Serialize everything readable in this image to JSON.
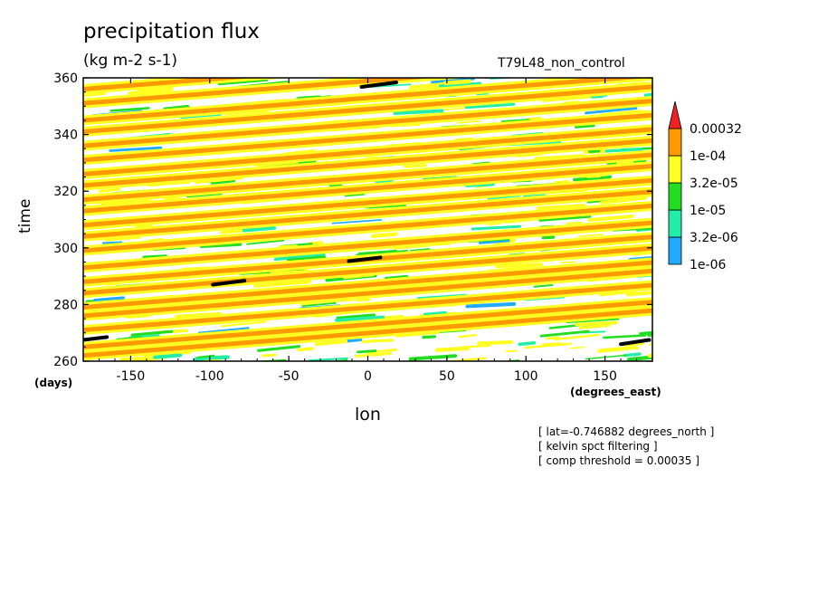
{
  "chart_data": {
    "type": "heatmap",
    "title": "precipitation flux",
    "units": "(kg m-2 s-1)",
    "dataset_label": "T79L48_non_control",
    "xlabel": "lon",
    "x_units": "(degrees_east)",
    "ylabel": "time",
    "y_units": "(days)",
    "xlim": [
      -180,
      180
    ],
    "ylim": [
      260,
      360
    ],
    "x_ticks": [
      -150,
      -100,
      -50,
      0,
      50,
      100,
      150
    ],
    "y_ticks": [
      260,
      280,
      300,
      320,
      340,
      360
    ],
    "colorbar": {
      "levels": [
        "1e-06",
        "3.2e-06",
        "1e-05",
        "3.2e-05",
        "1e-04",
        "0.00032"
      ],
      "colors": [
        "#22aaff",
        "#22eeaa",
        "#22dd22",
        "#ffff22",
        "#ff9900",
        "#ee2222"
      ],
      "extend": "max"
    },
    "bands_note": "eastward-propagating precipitation bands; day values at lon -180",
    "bands": [
      262,
      265,
      271,
      276,
      279,
      284,
      288,
      293,
      299,
      304,
      308,
      313,
      317,
      322,
      326,
      331,
      336,
      341,
      345,
      351,
      356
    ],
    "band_slope_days_per_degree": 0.044,
    "threshold_segments": [
      {
        "lon": [
          -180,
          -165
        ],
        "time": [
          267.5,
          268.5
        ]
      },
      {
        "lon": [
          -98,
          -78
        ],
        "time": [
          287,
          288.4
        ]
      },
      {
        "lon": [
          -12,
          8
        ],
        "time": [
          295.3,
          296.6
        ]
      },
      {
        "lon": [
          -4,
          18
        ],
        "time": [
          356.8,
          358.4
        ]
      },
      {
        "lon": [
          160,
          178
        ],
        "time": [
          266,
          267.5
        ]
      }
    ],
    "notes": [
      "[ lat=-0.746882 degrees_north ]",
      "[ kelvin spct filtering ]",
      "[ comp threshold = 0.00035 ]"
    ]
  }
}
